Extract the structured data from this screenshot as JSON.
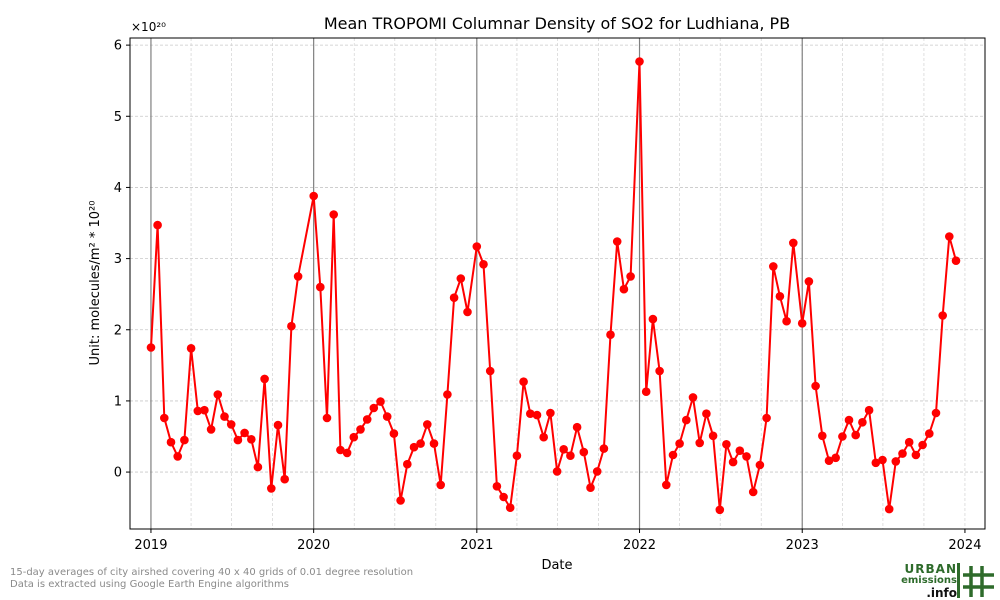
{
  "chart_data": {
    "type": "line",
    "title": "Mean TROPOMI Columnar Density of SO2 for Ludhiana, PB",
    "xlabel": "Date",
    "ylabel": "Unit: molecules/m² * 10²⁰",
    "y_multiplier": "×10²⁰",
    "ylim": [
      -0.8,
      6.1
    ],
    "yticks": [
      0,
      1,
      2,
      3,
      4,
      5,
      6
    ],
    "xticks": [
      "2019",
      "2020",
      "2021",
      "2022",
      "2023",
      "2024"
    ],
    "year_lines": [
      "2019",
      "2020",
      "2021",
      "2022",
      "2023"
    ],
    "grid": true,
    "color": "#ff0000",
    "series": [
      {
        "points": [
          [
            "2019-01-01",
            1.75
          ],
          [
            "2019-01-16",
            3.47
          ],
          [
            "2019-01-31",
            0.76
          ],
          [
            "2019-02-15",
            0.42
          ],
          [
            "2019-03-02",
            0.22
          ],
          [
            "2019-03-17",
            0.45
          ],
          [
            "2019-04-01",
            1.74
          ],
          [
            "2019-04-16",
            0.86
          ],
          [
            "2019-05-01",
            0.87
          ],
          [
            "2019-05-16",
            0.6
          ],
          [
            "2019-05-31",
            1.09
          ],
          [
            "2019-06-15",
            0.78
          ],
          [
            "2019-06-30",
            0.67
          ],
          [
            "2019-07-15",
            0.45
          ],
          [
            "2019-07-30",
            0.55
          ],
          [
            "2019-08-14",
            0.46
          ],
          [
            "2019-08-29",
            0.07
          ],
          [
            "2019-09-13",
            1.31
          ],
          [
            "2019-09-28",
            -0.23
          ],
          [
            "2019-10-13",
            0.66
          ],
          [
            "2019-10-28",
            -0.1
          ],
          [
            "2019-11-12",
            2.05
          ],
          [
            "2019-11-27",
            2.75
          ],
          [
            "2020-01-01",
            3.88
          ],
          [
            "2020-01-16",
            2.6
          ],
          [
            "2020-01-31",
            0.76
          ],
          [
            "2020-02-15",
            3.62
          ],
          [
            "2020-03-01",
            0.31
          ],
          [
            "2020-03-16",
            0.27
          ],
          [
            "2020-03-31",
            0.49
          ],
          [
            "2020-04-15",
            0.6
          ],
          [
            "2020-04-30",
            0.74
          ],
          [
            "2020-05-15",
            0.9
          ],
          [
            "2020-05-30",
            0.99
          ],
          [
            "2020-06-14",
            0.78
          ],
          [
            "2020-06-29",
            0.54
          ],
          [
            "2020-07-14",
            -0.4
          ],
          [
            "2020-07-29",
            0.11
          ],
          [
            "2020-08-13",
            0.35
          ],
          [
            "2020-08-28",
            0.4
          ],
          [
            "2020-09-12",
            0.67
          ],
          [
            "2020-09-27",
            0.4
          ],
          [
            "2020-10-12",
            -0.18
          ],
          [
            "2020-10-27",
            1.09
          ],
          [
            "2020-11-11",
            2.45
          ],
          [
            "2020-11-26",
            2.72
          ],
          [
            "2020-12-11",
            2.25
          ],
          [
            "2021-01-01",
            3.17
          ],
          [
            "2021-01-16",
            2.92
          ],
          [
            "2021-01-31",
            1.42
          ],
          [
            "2021-02-15",
            -0.2
          ],
          [
            "2021-03-02",
            -0.35
          ],
          [
            "2021-03-17",
            -0.5
          ],
          [
            "2021-04-01",
            0.23
          ],
          [
            "2021-04-16",
            1.27
          ],
          [
            "2021-05-01",
            0.82
          ],
          [
            "2021-05-16",
            0.8
          ],
          [
            "2021-05-31",
            0.49
          ],
          [
            "2021-06-15",
            0.83
          ],
          [
            "2021-06-30",
            0.01
          ],
          [
            "2021-07-15",
            0.32
          ],
          [
            "2021-07-30",
            0.23
          ],
          [
            "2021-08-14",
            0.63
          ],
          [
            "2021-08-29",
            0.28
          ],
          [
            "2021-09-13",
            -0.22
          ],
          [
            "2021-09-28",
            0.01
          ],
          [
            "2021-10-13",
            0.33
          ],
          [
            "2021-10-28",
            1.93
          ],
          [
            "2021-11-12",
            3.24
          ],
          [
            "2021-11-27",
            2.57
          ],
          [
            "2021-12-12",
            2.75
          ],
          [
            "2022-01-01",
            5.77
          ],
          [
            "2022-01-16",
            1.13
          ],
          [
            "2022-01-31",
            2.15
          ],
          [
            "2022-02-15",
            1.42
          ],
          [
            "2022-03-02",
            -0.18
          ],
          [
            "2022-03-17",
            0.24
          ],
          [
            "2022-04-01",
            0.4
          ],
          [
            "2022-04-16",
            0.73
          ],
          [
            "2022-05-01",
            1.05
          ],
          [
            "2022-05-16",
            0.41
          ],
          [
            "2022-05-31",
            0.82
          ],
          [
            "2022-06-15",
            0.51
          ],
          [
            "2022-06-30",
            -0.53
          ],
          [
            "2022-07-15",
            0.39
          ],
          [
            "2022-07-30",
            0.14
          ],
          [
            "2022-08-14",
            0.3
          ],
          [
            "2022-08-29",
            0.22
          ],
          [
            "2022-09-13",
            -0.28
          ],
          [
            "2022-09-28",
            0.1
          ],
          [
            "2022-10-13",
            0.76
          ],
          [
            "2022-10-28",
            2.89
          ],
          [
            "2022-11-12",
            2.47
          ],
          [
            "2022-11-27",
            2.12
          ],
          [
            "2022-12-12",
            3.22
          ],
          [
            "2023-01-01",
            2.09
          ],
          [
            "2023-01-16",
            2.68
          ],
          [
            "2023-01-31",
            1.21
          ],
          [
            "2023-02-15",
            0.51
          ],
          [
            "2023-03-02",
            0.16
          ],
          [
            "2023-03-17",
            0.2
          ],
          [
            "2023-04-01",
            0.5
          ],
          [
            "2023-04-16",
            0.73
          ],
          [
            "2023-05-01",
            0.52
          ],
          [
            "2023-05-16",
            0.7
          ],
          [
            "2023-05-31",
            0.87
          ],
          [
            "2023-06-15",
            0.13
          ],
          [
            "2023-06-30",
            0.17
          ],
          [
            "2023-07-15",
            -0.52
          ],
          [
            "2023-07-30",
            0.15
          ],
          [
            "2023-08-14",
            0.26
          ],
          [
            "2023-08-29",
            0.42
          ],
          [
            "2023-09-13",
            0.24
          ],
          [
            "2023-09-28",
            0.38
          ],
          [
            "2023-10-13",
            0.54
          ],
          [
            "2023-10-28",
            0.83
          ],
          [
            "2023-11-12",
            2.2
          ],
          [
            "2023-11-27",
            3.31
          ],
          [
            "2023-12-12",
            2.97
          ]
        ]
      }
    ]
  },
  "footnote": {
    "line1": "15-day averages of city airshed covering 40 x 40 grids of 0.01 degree resolution",
    "line2": "Data is extracted using Google Earth Engine algorithms"
  },
  "logo": {
    "line1": "URBAN",
    "line2": "emissions",
    "line3": ".info"
  }
}
